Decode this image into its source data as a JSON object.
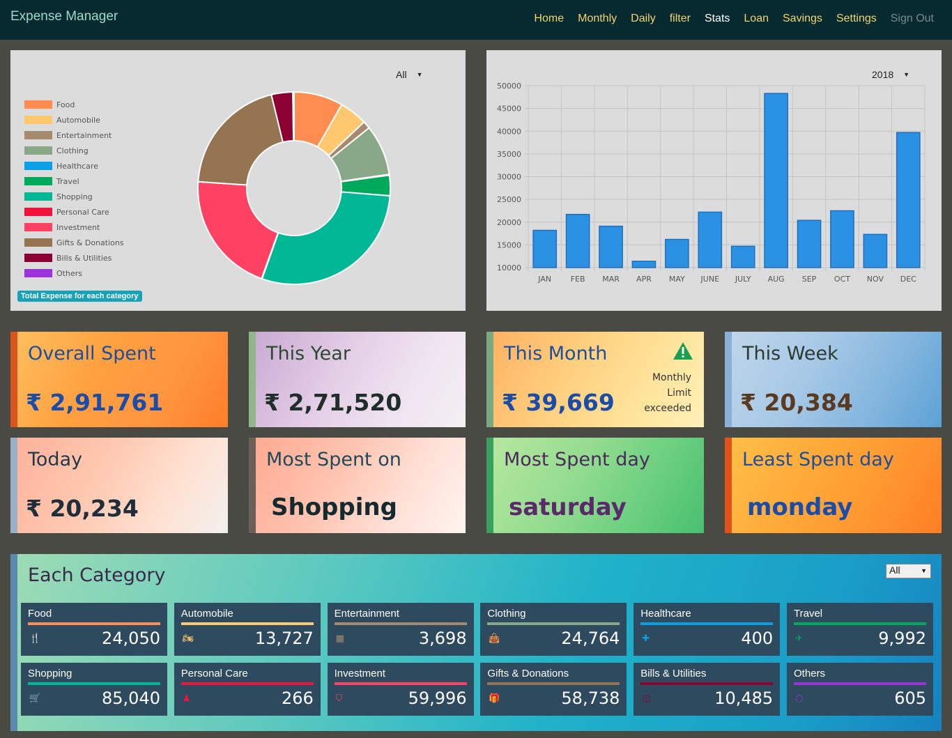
{
  "app": {
    "title": "Expense Manager"
  },
  "nav": [
    {
      "label": "Home",
      "state": "normal"
    },
    {
      "label": "Monthly",
      "state": "normal"
    },
    {
      "label": "Daily",
      "state": "normal"
    },
    {
      "label": "filter",
      "state": "normal"
    },
    {
      "label": "Stats",
      "state": "active"
    },
    {
      "label": "Loan",
      "state": "normal"
    },
    {
      "label": "Savings",
      "state": "normal"
    },
    {
      "label": "Settings",
      "state": "normal"
    },
    {
      "label": "Sign Out",
      "state": "muted"
    }
  ],
  "pie_panel": {
    "selected": "All",
    "badge": "Total Expense for each category"
  },
  "bar_panel": {
    "selected": "2018"
  },
  "chart_data": [
    {
      "type": "pie",
      "variant": "doughnut",
      "legend_position": "left",
      "labels": [
        "Food",
        "Automobile",
        "Entertainment",
        "Clothing",
        "Healthcare",
        "Travel",
        "Shopping",
        "Personal Care",
        "Investment",
        "Gifts & Donations",
        "Bills & Utilities",
        "Others"
      ],
      "colors": [
        "#ff8c50",
        "#ffc86e",
        "#a68a6e",
        "#88a888",
        "#0aa0e6",
        "#00aa5a",
        "#00b896",
        "#f0143c",
        "#ff4164",
        "#957452",
        "#8c0032",
        "#9b32dc"
      ],
      "values": [
        24050,
        13727,
        3698,
        24764,
        400,
        9992,
        85040,
        266,
        59996,
        58738,
        10485,
        605
      ]
    },
    {
      "type": "bar",
      "categories": [
        "JAN",
        "FEB",
        "MAR",
        "APR",
        "MAY",
        "JUNE",
        "JULY",
        "AUG",
        "SEP",
        "OCT",
        "NOV",
        "DEC"
      ],
      "values": [
        18200,
        21700,
        19100,
        11400,
        16200,
        22200,
        14700,
        48300,
        20400,
        22500,
        17300,
        39700
      ],
      "ylim": [
        10000,
        50000
      ],
      "yticks": [
        10000,
        15000,
        20000,
        25000,
        30000,
        35000,
        40000,
        45000,
        50000
      ],
      "grid": true,
      "color": "#2b91e3"
    }
  ],
  "cards": {
    "overall": {
      "title": "Overall Spent",
      "value": "₹ 2,91,761"
    },
    "year": {
      "title": "This Year",
      "value": "₹ 2,71,520"
    },
    "month": {
      "title": "This Month",
      "value": "₹ 39,669",
      "note1": "Monthly",
      "note2": "Limit",
      "note3": "exceeded"
    },
    "week": {
      "title": "This Week",
      "value": "₹ 20,384"
    },
    "today": {
      "title": "Today",
      "value": "₹ 20,234"
    },
    "most_spent_on": {
      "title": "Most Spent on",
      "value": "Shopping"
    },
    "most_spent_day": {
      "title": "Most Spent day",
      "value": "saturday"
    },
    "least_spent_day": {
      "title": "Least Spent day",
      "value": "monday"
    }
  },
  "each_category": {
    "title": "Each Category",
    "selected": "All",
    "items": [
      {
        "name": "Food",
        "value": "24,050",
        "color": "#ff8c50",
        "icon": "cutlery-icon"
      },
      {
        "name": "Automobile",
        "value": "13,727",
        "color": "#ffc86e",
        "icon": "motorcycle-icon"
      },
      {
        "name": "Entertainment",
        "value": "3,698",
        "color": "#a68a6e",
        "icon": "film-icon"
      },
      {
        "name": "Clothing",
        "value": "24,764",
        "color": "#88a888",
        "icon": "shopping-bag-icon"
      },
      {
        "name": "Healthcare",
        "value": "400",
        "color": "#0aa0e6",
        "icon": "medkit-icon"
      },
      {
        "name": "Travel",
        "value": "9,992",
        "color": "#00aa5a",
        "icon": "plane-icon"
      },
      {
        "name": "Shopping",
        "value": "85,040",
        "color": "#00b896",
        "icon": "cart-icon"
      },
      {
        "name": "Personal Care",
        "value": "266",
        "color": "#f0143c",
        "icon": "user-icon"
      },
      {
        "name": "Investment",
        "value": "59,996",
        "color": "#ff4164",
        "icon": "pocket-icon"
      },
      {
        "name": "Gifts & Donations",
        "value": "58,738",
        "color": "#957452",
        "icon": "gift-icon"
      },
      {
        "name": "Bills & Utilities",
        "value": "10,485",
        "color": "#8c0032",
        "icon": "columns-icon"
      },
      {
        "name": "Others",
        "value": "605",
        "color": "#9b32dc",
        "icon": "circle-icon"
      }
    ]
  }
}
